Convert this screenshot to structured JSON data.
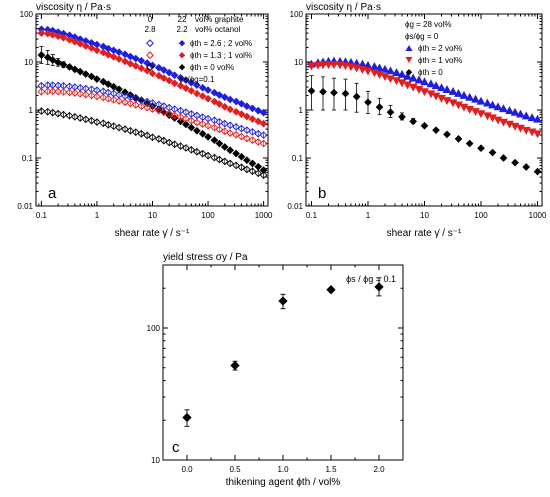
{
  "colors": {
    "blue": "#1f1fdc",
    "red": "#e02020",
    "black": "#000000"
  },
  "chart_data": [
    {
      "panel": "a",
      "type": "scatter",
      "xscale": "log",
      "yscale": "log",
      "xlim": [
        0.08,
        1200
      ],
      "ylim": [
        0.01,
        100
      ],
      "ylabel": "viscosity η / Pa·s",
      "xlabel": "shear rate γ̇ / s⁻¹",
      "xticks": [
        "0.1",
        "1",
        "10",
        "100",
        "1000"
      ],
      "yticks": [
        "0.01",
        "0.1",
        "1",
        "10",
        "100"
      ],
      "header": {
        "c1": [
          "0",
          "2.8"
        ],
        "c2": [
          "22",
          "2.2"
        ],
        "c3": [
          "vol% graphite",
          "vol% octanol"
        ]
      },
      "legend": [
        "ϕth = 2.6 ; 2 vol%",
        "ϕth = 1.3 ; 1 vol%",
        "ϕth = 0 vol%",
        "ϕs/ϕg=0.1"
      ],
      "series": [
        {
          "name": "ϕth = 2.6 ; 2 vol%",
          "color": "blue",
          "marker": "diamond",
          "filled": true,
          "x": [
            0.1,
            0.13,
            0.16,
            0.2,
            0.25,
            0.32,
            0.4,
            0.5,
            0.63,
            0.8,
            1,
            1.3,
            1.6,
            2,
            2.5,
            3.2,
            4,
            5,
            6.3,
            8,
            10,
            13,
            16,
            20,
            25,
            32,
            40,
            50,
            63,
            80,
            100,
            130,
            160,
            200,
            250,
            320,
            400,
            500,
            630,
            800,
            1000
          ],
          "y": [
            48,
            47,
            45,
            42,
            39,
            36,
            33,
            30,
            27.5,
            25,
            23,
            21,
            19,
            17.5,
            16,
            14.5,
            13,
            11.8,
            10.6,
            9.5,
            8.5,
            7.6,
            6.8,
            6,
            5.3,
            4.7,
            4.2,
            3.7,
            3.3,
            2.9,
            2.6,
            2.3,
            2.05,
            1.85,
            1.65,
            1.5,
            1.35,
            1.2,
            1.08,
            0.97,
            0.88
          ]
        },
        {
          "name": "ϕth = 1.3 ; 1 vol%",
          "color": "red",
          "marker": "diamond",
          "filled": true,
          "x": [
            0.1,
            0.13,
            0.16,
            0.2,
            0.25,
            0.32,
            0.4,
            0.5,
            0.63,
            0.8,
            1,
            1.3,
            1.6,
            2,
            2.5,
            3.2,
            4,
            5,
            6.3,
            8,
            10,
            13,
            16,
            20,
            25,
            32,
            40,
            50,
            63,
            80,
            100,
            130,
            160,
            200,
            250,
            320,
            400,
            500,
            630,
            800,
            1000
          ],
          "y": [
            40,
            39,
            37,
            34.5,
            32,
            29,
            26.5,
            24,
            21.5,
            19.5,
            17.5,
            15.8,
            14.2,
            12.8,
            11.5,
            10.3,
            9.2,
            8.3,
            7.4,
            6.6,
            5.8,
            5.2,
            4.6,
            4.1,
            3.6,
            3.2,
            2.85,
            2.5,
            2.2,
            1.95,
            1.72,
            1.5,
            1.33,
            1.17,
            1.03,
            0.92,
            0.82,
            0.73,
            0.65,
            0.58,
            0.52
          ]
        },
        {
          "name": "ϕth = 0 vol%",
          "color": "black",
          "marker": "diamond",
          "filled": true,
          "x": [
            0.1,
            0.13,
            0.16,
            0.2,
            0.25,
            0.32,
            0.4,
            0.5,
            0.63,
            0.8,
            1,
            1.3,
            1.6,
            2,
            2.5,
            3.2,
            4,
            5,
            6.3,
            8,
            10,
            13,
            16,
            20,
            25,
            32,
            40,
            50,
            63,
            80,
            100,
            130,
            160,
            200,
            250,
            320,
            400,
            500,
            630,
            800,
            1000
          ],
          "y": [
            14,
            12.5,
            11,
            9.8,
            8.8,
            7.9,
            7,
            6.3,
            5.6,
            5,
            4.4,
            3.9,
            3.45,
            3.05,
            2.7,
            2.35,
            2.05,
            1.8,
            1.58,
            1.37,
            1.2,
            1.04,
            0.9,
            0.78,
            0.68,
            0.58,
            0.5,
            0.43,
            0.37,
            0.32,
            0.275,
            0.235,
            0.2,
            0.17,
            0.145,
            0.124,
            0.106,
            0.09,
            0.077,
            0.066,
            0.056
          ],
          "err": [
            0.5,
            0.4,
            0.3,
            0.2,
            0.15,
            0.1,
            0.08,
            0.05,
            0,
            0,
            0,
            0,
            0,
            0,
            0,
            0,
            0,
            0,
            0,
            0,
            0,
            0,
            0,
            0,
            0,
            0,
            0,
            0,
            0,
            0,
            0,
            0,
            0,
            0,
            0,
            0,
            0,
            0,
            0,
            0,
            0
          ]
        },
        {
          "name": "ϕth = 2.6 ; 2 vol% (ϕs/ϕg=0.1)",
          "color": "blue",
          "marker": "diamond",
          "filled": false,
          "x": [
            0.1,
            0.13,
            0.16,
            0.2,
            0.25,
            0.32,
            0.4,
            0.5,
            0.63,
            0.8,
            1,
            1.3,
            1.6,
            2,
            2.5,
            3.2,
            4,
            5,
            6.3,
            8,
            10,
            13,
            16,
            20,
            25,
            32,
            40,
            50,
            63,
            80,
            100,
            130,
            160,
            200,
            250,
            320,
            400,
            500,
            630,
            800,
            1000
          ],
          "y": [
            3.2,
            3.3,
            3.3,
            3.25,
            3.2,
            3.1,
            3.0,
            2.9,
            2.8,
            2.7,
            2.58,
            2.45,
            2.32,
            2.2,
            2.07,
            1.95,
            1.83,
            1.72,
            1.61,
            1.5,
            1.4,
            1.3,
            1.21,
            1.12,
            1.04,
            0.97,
            0.9,
            0.83,
            0.77,
            0.71,
            0.66,
            0.61,
            0.565,
            0.52,
            0.48,
            0.445,
            0.41,
            0.38,
            0.35,
            0.32,
            0.3
          ]
        },
        {
          "name": "ϕth = 1.3 ; 1 vol% (ϕs/ϕg=0.1)",
          "color": "red",
          "marker": "diamond",
          "filled": false,
          "x": [
            0.1,
            0.13,
            0.16,
            0.2,
            0.25,
            0.32,
            0.4,
            0.5,
            0.63,
            0.8,
            1,
            1.3,
            1.6,
            2,
            2.5,
            3.2,
            4,
            5,
            6.3,
            8,
            10,
            13,
            16,
            20,
            25,
            32,
            40,
            50,
            63,
            80,
            100,
            130,
            160,
            200,
            250,
            320,
            400,
            500,
            630,
            800,
            1000
          ],
          "y": [
            2.4,
            2.45,
            2.45,
            2.42,
            2.38,
            2.32,
            2.25,
            2.17,
            2.09,
            2.0,
            1.91,
            1.82,
            1.72,
            1.63,
            1.54,
            1.45,
            1.37,
            1.28,
            1.2,
            1.12,
            1.05,
            0.97,
            0.9,
            0.84,
            0.77,
            0.71,
            0.66,
            0.6,
            0.55,
            0.51,
            0.47,
            0.43,
            0.395,
            0.36,
            0.33,
            0.305,
            0.28,
            0.255,
            0.235,
            0.215,
            0.2
          ]
        },
        {
          "name": "ϕth = 0 vol% (ϕs/ϕg=0.1)",
          "color": "black",
          "marker": "diamond",
          "filled": false,
          "x": [
            0.1,
            0.13,
            0.16,
            0.2,
            0.25,
            0.32,
            0.4,
            0.5,
            0.63,
            0.8,
            1,
            1.3,
            1.6,
            2,
            2.5,
            3.2,
            4,
            5,
            6.3,
            8,
            10,
            13,
            16,
            20,
            25,
            32,
            40,
            50,
            63,
            80,
            100,
            130,
            160,
            200,
            250,
            320,
            400,
            500,
            630,
            800,
            1000
          ],
          "y": [
            0.95,
            0.92,
            0.88,
            0.84,
            0.8,
            0.76,
            0.72,
            0.68,
            0.64,
            0.6,
            0.56,
            0.53,
            0.49,
            0.46,
            0.43,
            0.4,
            0.37,
            0.345,
            0.32,
            0.295,
            0.27,
            0.25,
            0.23,
            0.21,
            0.193,
            0.177,
            0.162,
            0.148,
            0.135,
            0.123,
            0.112,
            0.102,
            0.093,
            0.085,
            0.077,
            0.07,
            0.064,
            0.058,
            0.053,
            0.048,
            0.044
          ]
        }
      ]
    },
    {
      "panel": "b",
      "type": "scatter",
      "xscale": "log",
      "yscale": "log",
      "xlim": [
        0.08,
        1200
      ],
      "ylim": [
        0.01,
        100
      ],
      "ylabel": "viscosity η / Pa·s",
      "xlabel": "shear rate γ̇ / s⁻¹",
      "xticks": [
        "0.1",
        "1",
        "10",
        "100",
        "1000"
      ],
      "yticks": [
        "0.01",
        "0.1",
        "1",
        "10",
        "100"
      ],
      "legend_header": [
        "ϕg = 28 vol%",
        "ϕs/ϕg = 0"
      ],
      "legend": [
        "ϕth = 2 vol%",
        "ϕth = 1 vol%",
        "ϕth = 0"
      ],
      "series": [
        {
          "name": "ϕth = 2 vol%",
          "color": "blue",
          "marker": "triangle-up",
          "x": [
            0.1,
            0.13,
            0.16,
            0.2,
            0.25,
            0.32,
            0.4,
            0.5,
            0.63,
            0.8,
            1,
            1.3,
            1.6,
            2,
            2.5,
            3.2,
            4,
            5,
            6.3,
            8,
            10,
            13,
            16,
            20,
            25,
            32,
            40,
            50,
            63,
            80,
            100,
            130,
            160,
            200,
            250,
            320,
            400,
            500,
            630,
            800,
            1000
          ],
          "y": [
            9,
            9.6,
            10,
            10.3,
            10.4,
            10.3,
            10.1,
            9.8,
            9.4,
            9,
            8.5,
            8,
            7.5,
            7,
            6.5,
            6,
            5.5,
            5,
            4.6,
            4.2,
            3.85,
            3.5,
            3.2,
            2.9,
            2.65,
            2.42,
            2.2,
            2.0,
            1.83,
            1.67,
            1.52,
            1.39,
            1.27,
            1.16,
            1.06,
            0.97,
            0.89,
            0.82,
            0.75,
            0.69,
            0.64
          ]
        },
        {
          "name": "ϕth = 1 vol%",
          "color": "red",
          "marker": "triangle-down",
          "x": [
            0.1,
            0.13,
            0.16,
            0.2,
            0.25,
            0.32,
            0.4,
            0.5,
            0.63,
            0.8,
            1,
            1.3,
            1.6,
            2,
            2.5,
            3.2,
            4,
            5,
            6.3,
            8,
            10,
            13,
            16,
            20,
            25,
            32,
            40,
            50,
            63,
            80,
            100,
            130,
            160,
            200,
            250,
            320,
            400,
            500,
            630,
            800,
            1000
          ],
          "y": [
            8.3,
            8.6,
            8.8,
            8.9,
            8.85,
            8.7,
            8.4,
            8.0,
            7.5,
            7.0,
            6.5,
            6.0,
            5.5,
            5.0,
            4.5,
            4.1,
            3.7,
            3.35,
            3.0,
            2.7,
            2.42,
            2.18,
            1.96,
            1.76,
            1.58,
            1.42,
            1.28,
            1.15,
            1.03,
            0.93,
            0.84,
            0.76,
            0.69,
            0.62,
            0.56,
            0.51,
            0.46,
            0.42,
            0.38,
            0.35,
            0.32
          ]
        },
        {
          "name": "ϕth = 0",
          "color": "black",
          "marker": "diamond",
          "x": [
            0.1,
            0.16,
            0.25,
            0.4,
            0.63,
            1,
            1.6,
            2.5,
            4,
            6.3,
            10,
            16,
            25,
            40,
            63,
            100,
            160,
            250,
            400,
            630,
            1000
          ],
          "y": [
            2.5,
            2.4,
            2.3,
            2.2,
            1.9,
            1.45,
            1.15,
            0.9,
            0.72,
            0.58,
            0.47,
            0.38,
            0.31,
            0.25,
            0.2,
            0.16,
            0.13,
            0.1,
            0.08,
            0.065,
            0.052
          ],
          "err_hi": [
            2.7,
            2.5,
            2.3,
            2.2,
            1.7,
            1.0,
            0.6,
            0.35,
            0.15,
            0.08,
            0,
            0,
            0,
            0,
            0,
            0,
            0,
            0,
            0,
            0,
            0
          ],
          "err_lo": [
            1.5,
            1.4,
            1.3,
            1.2,
            1.0,
            0.6,
            0.35,
            0.2,
            0.1,
            0.05,
            0,
            0,
            0,
            0,
            0,
            0,
            0,
            0,
            0,
            0,
            0
          ]
        }
      ]
    },
    {
      "panel": "c",
      "type": "scatter",
      "xscale": "linear",
      "yscale": "log",
      "xlim": [
        -0.25,
        2.25
      ],
      "ylim": [
        10,
        300
      ],
      "ylabel": "yield stress σy / Pa",
      "xlabel": "thikening agent ϕth / vol%",
      "xticks": [
        "0.0",
        "0.5",
        "1.0",
        "1.5",
        "2.0"
      ],
      "yticks": [
        "10",
        "100"
      ],
      "annotation": "ϕs / ϕg = 0.1",
      "series": [
        {
          "color": "black",
          "marker": "diamond",
          "x": [
            0,
            0.5,
            1.0,
            1.5,
            2.0
          ],
          "y": [
            21,
            52,
            160,
            195,
            205
          ],
          "err_lo": [
            18,
            48,
            140,
            190,
            175
          ],
          "err_hi": [
            24,
            56,
            180,
            200,
            240
          ]
        }
      ]
    }
  ],
  "labels": {
    "a": {
      "title": "viscosity η / Pa·s",
      "panel": "a",
      "xlabel": "shear rate γ̇ / s⁻¹",
      "h_c1_1": "0",
      "h_c2_1": "22",
      "h_c3_1": "vol% graphite",
      "h_c1_2": "2.8",
      "h_c2_2": "2.2",
      "h_c3_2": "vol% octanol",
      "leg1": "ϕth = 2.6 ; 2 vol%",
      "leg2": "ϕth = 1.3 ; 1 vol%",
      "leg3": "ϕth = 0 vol%",
      "leg4": "ϕs/ϕg=0.1"
    },
    "b": {
      "title": "viscosity η / Pa·s",
      "panel": "b",
      "xlabel": "shear rate γ̇ / s⁻¹",
      "h1": "ϕg = 28 vol%",
      "h2": "ϕs/ϕg = 0",
      "leg1": "ϕth = 2 vol%",
      "leg2": "ϕth = 1 vol%",
      "leg3": "ϕth = 0"
    },
    "c": {
      "title": "yield stress σy / Pa",
      "panel": "c",
      "xlabel": "thikening agent ϕth / vol%",
      "annotation": "ϕs / ϕg = 0.1"
    }
  }
}
